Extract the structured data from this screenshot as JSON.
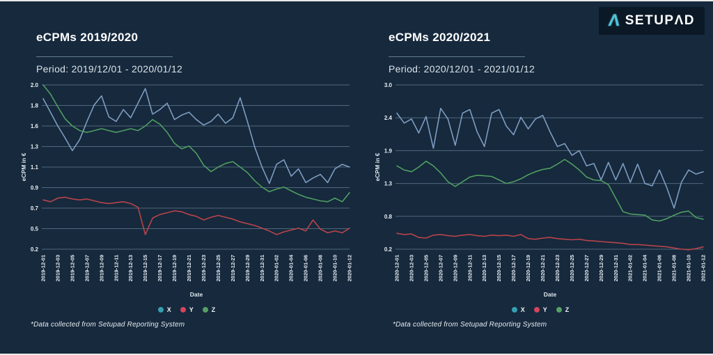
{
  "page": {
    "background": "#16293d"
  },
  "logo": {
    "mark": "Λ",
    "text": "SETUPΛD"
  },
  "legend": {
    "items": [
      {
        "label": "X",
        "color": "#35a0b4"
      },
      {
        "label": "Y",
        "color": "#d4455b"
      },
      {
        "label": "Z",
        "color": "#55a065"
      }
    ]
  },
  "footnote": "*Data collected from Setupad Reporting System",
  "chart_data": [
    {
      "type": "line",
      "title": "eCPMs 2019/2020",
      "period": "Period: 2019/12/01 - 2020/01/12",
      "xlabel": "Date",
      "ylabel": "eCPM in €",
      "ylim": [
        0.2,
        2.0
      ],
      "grid": true,
      "legend_position": "bottom",
      "y_tick_labels": [
        "2.0",
        "1.8",
        "1.6",
        "1.3",
        "1.1",
        "0.9",
        "0.7",
        "0.5",
        "0.2"
      ],
      "x_tick_labels": [
        "2019-12-01",
        "2019-12-03",
        "2019-12-05",
        "2019-12-07",
        "2019-12-09",
        "2019-12-11",
        "2019-12-13",
        "2019-12-15",
        "2019-12-17",
        "2019-12-19",
        "2019-12-21",
        "2019-12-23",
        "2019-12-25",
        "2019-12-27",
        "2019-12-29",
        "2019-12-31",
        "2020-01-02",
        "2020-01-04",
        "2020-01-06",
        "2020-01-08",
        "2020-01-10",
        "2020-01-12"
      ],
      "series": [
        {
          "name": "X",
          "color": "#7e9dc0",
          "values": [
            1.85,
            1.7,
            1.55,
            1.42,
            1.28,
            1.4,
            1.6,
            1.78,
            1.88,
            1.65,
            1.6,
            1.73,
            1.64,
            1.8,
            1.96,
            1.68,
            1.73,
            1.8,
            1.62,
            1.67,
            1.7,
            1.62,
            1.56,
            1.6,
            1.68,
            1.58,
            1.64,
            1.86,
            1.6,
            1.32,
            1.1,
            0.92,
            1.13,
            1.18,
            1.0,
            1.08,
            0.93,
            0.98,
            1.02,
            0.93,
            1.08,
            1.13,
            1.1
          ]
        },
        {
          "name": "Z",
          "color": "#4f9e61",
          "values": [
            2.0,
            1.9,
            1.76,
            1.63,
            1.55,
            1.5,
            1.48,
            1.5,
            1.52,
            1.5,
            1.48,
            1.5,
            1.52,
            1.5,
            1.55,
            1.62,
            1.57,
            1.48,
            1.36,
            1.3,
            1.33,
            1.25,
            1.12,
            1.05,
            1.1,
            1.14,
            1.16,
            1.1,
            1.04,
            0.95,
            0.88,
            0.83,
            0.86,
            0.88,
            0.84,
            0.8,
            0.77,
            0.75,
            0.73,
            0.72,
            0.76,
            0.72,
            0.82
          ]
        },
        {
          "name": "Y",
          "color": "#b8444a",
          "values": [
            0.74,
            0.72,
            0.76,
            0.77,
            0.75,
            0.74,
            0.75,
            0.73,
            0.71,
            0.7,
            0.71,
            0.72,
            0.7,
            0.66,
            0.36,
            0.54,
            0.58,
            0.6,
            0.62,
            0.61,
            0.58,
            0.56,
            0.52,
            0.55,
            0.57,
            0.55,
            0.53,
            0.5,
            0.48,
            0.46,
            0.43,
            0.4,
            0.36,
            0.39,
            0.41,
            0.43,
            0.4,
            0.52,
            0.42,
            0.38,
            0.4,
            0.38,
            0.43
          ]
        }
      ]
    },
    {
      "type": "line",
      "title": "eCPMs 2020/2021",
      "period": "Period: 2020/12/01 - 2021/01/12",
      "xlabel": "Date",
      "ylabel": "eCPM in €",
      "ylim": [
        0.2,
        3.0
      ],
      "grid": true,
      "legend_position": "bottom",
      "y_tick_labels": [
        "3.0",
        "2.4",
        "1.9",
        "1.3",
        "0.8",
        "0.2"
      ],
      "x_tick_labels": [
        "2020-12-01",
        "2020-12-03",
        "2020-12-05",
        "2020-12-07",
        "2020-12-09",
        "2020-12-11",
        "2020-12-13",
        "2020-12-15",
        "2020-12-17",
        "2020-12-19",
        "2020-12-21",
        "2020-12-23",
        "2020-12-25",
        "2020-12-27",
        "2020-12-29",
        "2020-12-31",
        "2021-01-02",
        "2021-01-04",
        "2021-01-06",
        "2021-01-08",
        "2021-01-10",
        "2021-01-12"
      ],
      "series": [
        {
          "name": "X",
          "color": "#7e9dc0",
          "values": [
            2.52,
            2.35,
            2.42,
            2.18,
            2.46,
            1.92,
            2.6,
            2.42,
            1.97,
            2.52,
            2.58,
            2.2,
            1.95,
            2.52,
            2.58,
            2.3,
            2.15,
            2.45,
            2.25,
            2.42,
            2.48,
            2.2,
            1.95,
            2.0,
            1.8,
            1.88,
            1.62,
            1.66,
            1.38,
            1.68,
            1.38,
            1.66,
            1.34,
            1.65,
            1.32,
            1.28,
            1.55,
            1.25,
            0.9,
            1.34,
            1.55,
            1.48,
            1.52
          ]
        },
        {
          "name": "Z",
          "color": "#4f9e61",
          "values": [
            1.62,
            1.55,
            1.52,
            1.6,
            1.7,
            1.62,
            1.5,
            1.35,
            1.27,
            1.35,
            1.43,
            1.46,
            1.45,
            1.44,
            1.38,
            1.32,
            1.35,
            1.4,
            1.47,
            1.52,
            1.56,
            1.58,
            1.65,
            1.73,
            1.65,
            1.55,
            1.43,
            1.38,
            1.37,
            1.3,
            1.07,
            0.84,
            0.8,
            0.79,
            0.78,
            0.7,
            0.68,
            0.72,
            0.78,
            0.83,
            0.85,
            0.74,
            0.71
          ]
        },
        {
          "name": "Y",
          "color": "#b8444a",
          "values": [
            0.47,
            0.45,
            0.46,
            0.4,
            0.39,
            0.44,
            0.45,
            0.43,
            0.42,
            0.44,
            0.45,
            0.43,
            0.42,
            0.44,
            0.43,
            0.44,
            0.42,
            0.45,
            0.38,
            0.37,
            0.39,
            0.4,
            0.38,
            0.37,
            0.36,
            0.37,
            0.35,
            0.34,
            0.33,
            0.32,
            0.31,
            0.3,
            0.28,
            0.28,
            0.27,
            0.26,
            0.25,
            0.24,
            0.22,
            0.2,
            0.19,
            0.21,
            0.24
          ]
        }
      ]
    }
  ]
}
